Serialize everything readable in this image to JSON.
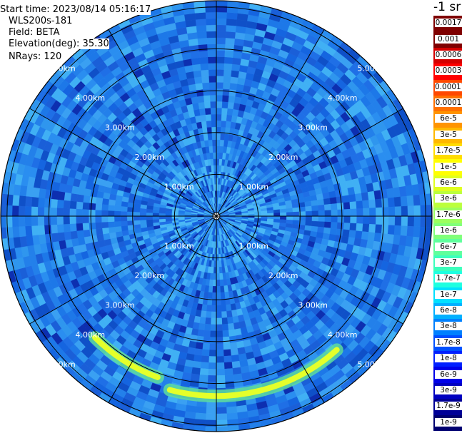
{
  "header": {
    "start_time": "Start time: 2023/08/14 05:16:17",
    "instrument": "WLS200s-181",
    "field": "Field: BETA",
    "elevation": "Elevation(deg): 35.30",
    "nrays": "NRays: 120"
  },
  "colorbar": {
    "unit_label": "-1 sr",
    "labels": [
      "0.0017",
      "0.001",
      "0.0006",
      "0.0003",
      "0.00017",
      "0.0001",
      "6e-5",
      "3e-5",
      "1.7e-5",
      "1e-5",
      "6e-6",
      "3e-6",
      "1.7e-6",
      "1e-6",
      "6e-7",
      "3e-7",
      "1.7e-7",
      "1e-7",
      "6e-8",
      "3e-8",
      "1.7e-8",
      "1e-8",
      "6e-9",
      "3e-9",
      "1.7e-9",
      "1e-9"
    ],
    "colors": [
      "#7f0000",
      "#7f0000",
      "#d40000",
      "#ff0000",
      "#ff4800",
      "#ff7000",
      "#ff9400",
      "#ffb800",
      "#ffdc00",
      "#ffff00",
      "#e0ff1e",
      "#bcff3c",
      "#9cff5e",
      "#80ff7a",
      "#5eff9c",
      "#3cffbc",
      "#1effe0",
      "#00e0ff",
      "#00b0ff",
      "#0080ff",
      "#0050ff",
      "#0020ff",
      "#0000e8",
      "#0000c0",
      "#000096",
      "#000070"
    ]
  },
  "chart_data": {
    "type": "heatmap",
    "projection": "polar (PPI)",
    "field": "BETA",
    "n_rays": 120,
    "elevation_deg": 35.3,
    "range_rings_km": [
      1.0,
      2.0,
      3.0,
      4.0,
      5.0
    ],
    "ring_labels": [
      "1.00km",
      "2.00km",
      "3.00km",
      "4.00km",
      "5.00km"
    ],
    "max_range_km": 5.0,
    "spokes_deg": [
      0,
      30,
      60,
      90,
      120,
      150,
      180,
      210,
      240,
      270,
      300,
      330
    ],
    "background_value": "3e-8",
    "features": [
      {
        "description": "enhanced backscatter arc",
        "range_km": 4.1,
        "azimuth_deg": [
          200,
          225
        ],
        "value": "1e-5"
      },
      {
        "description": "enhanced backscatter arc",
        "range_km": 4.3,
        "azimuth_deg": [
          138,
          195
        ],
        "value": "1.7e-5"
      }
    ]
  }
}
